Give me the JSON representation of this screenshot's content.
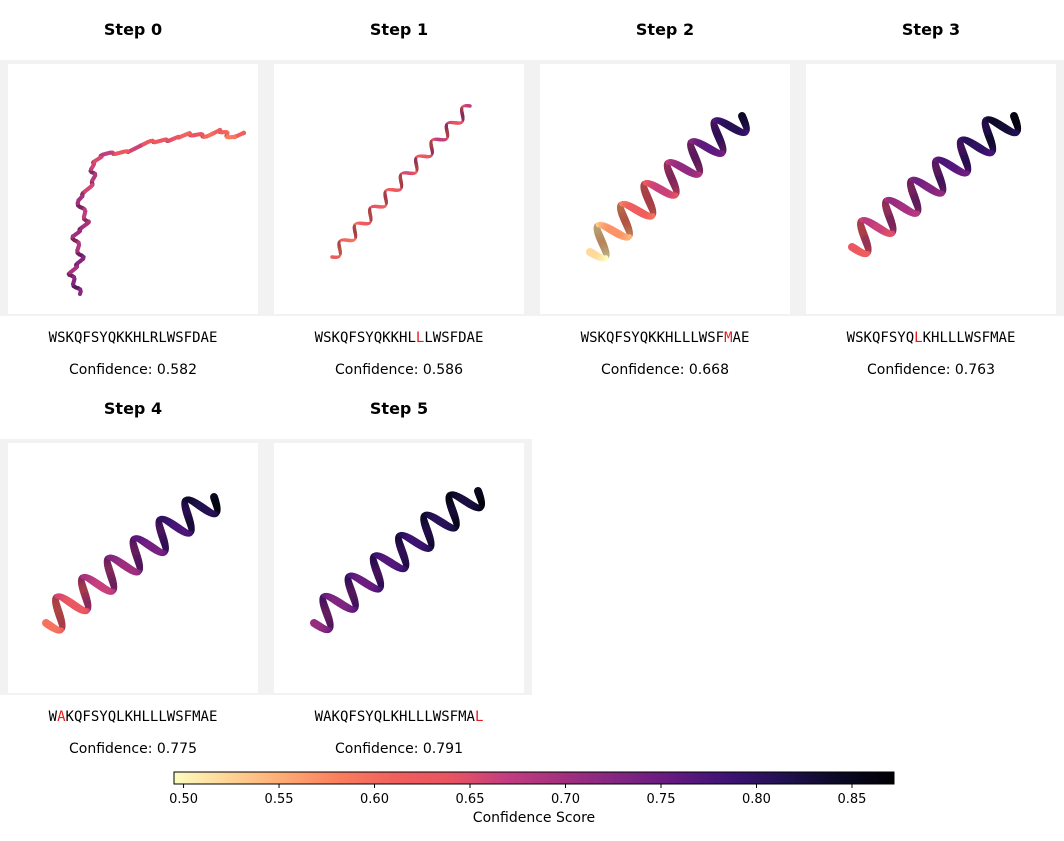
{
  "panels": [
    {
      "title": "Step 0",
      "sequence": "WSKQFSYQKKHLRLWSFDAE",
      "mutation_index": -1,
      "confidence_label": "Confidence: 0.582",
      "confidence": 0.582,
      "structure": "coil"
    },
    {
      "title": "Step 1",
      "sequence": "WSKQFSYQKKHLLLWSFDAE",
      "mutation_index": 12,
      "confidence_label": "Confidence: 0.586",
      "confidence": 0.586,
      "structure": "thin-helix"
    },
    {
      "title": "Step 2",
      "sequence": "WSKQFSYQKKHLLLWSFMAE",
      "mutation_index": 17,
      "confidence_label": "Confidence: 0.668",
      "confidence": 0.668,
      "structure": "helix"
    },
    {
      "title": "Step 3",
      "sequence": "WSKQFSYQLKHLLLWSFMAE",
      "mutation_index": 8,
      "confidence_label": "Confidence: 0.763",
      "confidence": 0.763,
      "structure": "helix"
    },
    {
      "title": "Step 4",
      "sequence": "WAKQFSYQLKHLLLWSFMAE",
      "mutation_index": 1,
      "confidence_label": "Confidence: 0.775",
      "confidence": 0.775,
      "structure": "helix"
    },
    {
      "title": "Step 5",
      "sequence": "WAKQFSYQLKHLLLWSFMAL",
      "mutation_index": 19,
      "confidence_label": "Confidence: 0.791",
      "confidence": 0.791,
      "structure": "helix"
    }
  ],
  "colorbar": {
    "label": "Confidence Score",
    "min": 0.495,
    "max": 0.872,
    "ticks": [
      "0.50",
      "0.55",
      "0.60",
      "0.65",
      "0.70",
      "0.75",
      "0.80",
      "0.85"
    ],
    "tick_values": [
      0.5,
      0.55,
      0.6,
      0.65,
      0.7,
      0.75,
      0.8,
      0.85
    ],
    "colormap": [
      "#fcfdbf",
      "#fed395",
      "#fea973",
      "#fa7d5e",
      "#f05f5e",
      "#e95462",
      "#c33d80",
      "#a3307e",
      "#822681",
      "#641a80",
      "#3e1374",
      "#221150",
      "#0b0924",
      "#000004"
    ],
    "mutation_color": "#e8191c"
  }
}
